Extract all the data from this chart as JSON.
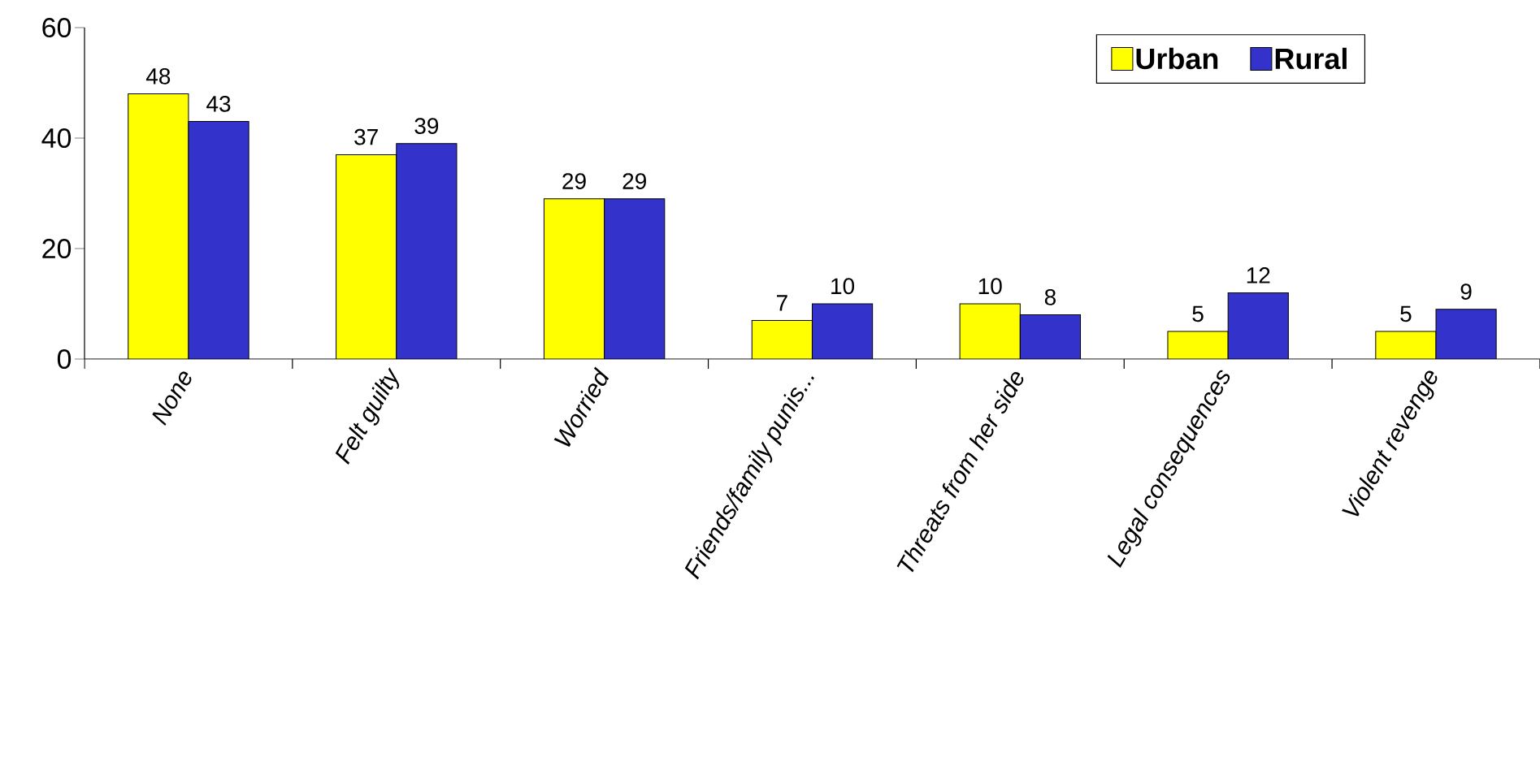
{
  "chart_data": {
    "type": "bar",
    "categories": [
      "None",
      "Felt guilty",
      "Worried",
      "Friends/family punis...",
      "Threats from her side",
      "Legal consequences",
      "Violent revenge"
    ],
    "series": [
      {
        "name": "Urban",
        "color": "#ffff00",
        "values": [
          48,
          37,
          29,
          7,
          10,
          5,
          5
        ]
      },
      {
        "name": "Rural",
        "color": "#3333cc",
        "values": [
          43,
          39,
          29,
          10,
          8,
          12,
          9
        ]
      }
    ],
    "ylim": [
      0,
      60
    ],
    "yticks": [
      0,
      20,
      40,
      60
    ],
    "data_labels": true,
    "legend": "top right",
    "grid": false
  }
}
